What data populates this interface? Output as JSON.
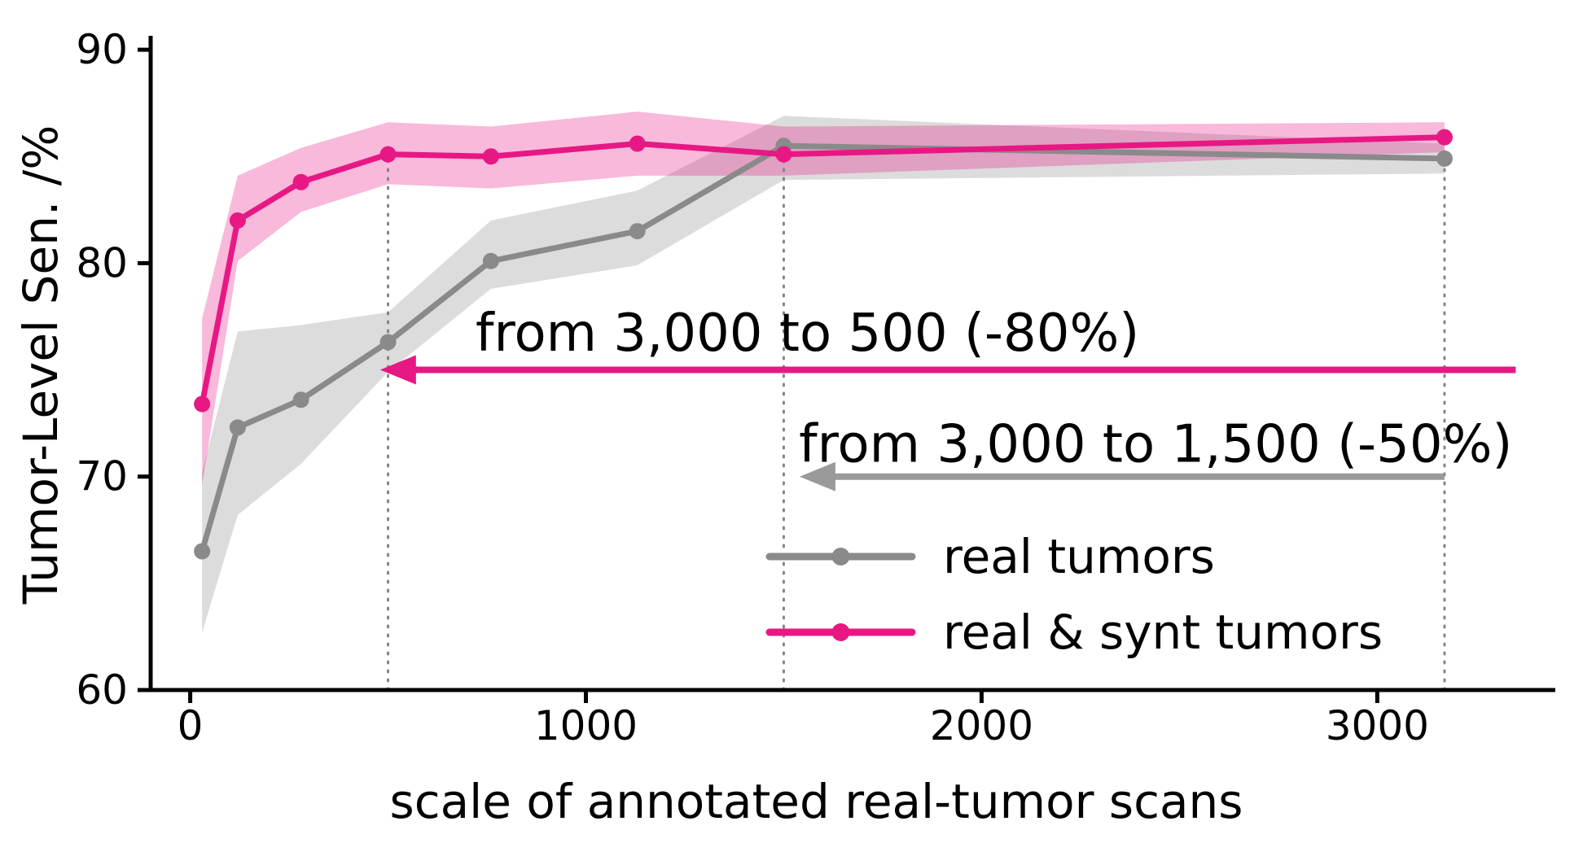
{
  "figure": {
    "background": "#ffffff",
    "text_color": "#000000",
    "spine_color": "#000000",
    "vline_color": "#858585"
  },
  "chart_data": {
    "type": "line",
    "title": "",
    "xlabel": "scale of annotated real-tumor scans",
    "ylabel": "Tumor-Level Sen. /%",
    "xlim": [
      -100,
      3450
    ],
    "ylim": [
      60,
      90.5
    ],
    "xticks": [
      0,
      1000,
      2000,
      3000
    ],
    "yticks": [
      60,
      70,
      80,
      90
    ],
    "grid": false,
    "x": [
      30,
      120,
      280,
      500,
      760,
      1130,
      1500,
      3170
    ],
    "series": [
      {
        "name": "real tumors",
        "color": "#8a8a8a",
        "band_opacity": 0.3,
        "y": [
          66.5,
          72.3,
          73.6,
          76.3,
          80.1,
          81.5,
          85.5,
          84.9
        ],
        "band_low": [
          62.7,
          68.2,
          70.6,
          74.9,
          78.8,
          79.9,
          83.9,
          84.2
        ],
        "band_high": [
          70.2,
          76.8,
          77.1,
          77.7,
          82.0,
          83.4,
          86.9,
          85.6
        ]
      },
      {
        "name": "real & synt tumors",
        "color": "#e71884",
        "band_opacity": 0.3,
        "y": [
          73.4,
          82.0,
          83.8,
          85.1,
          85.0,
          85.6,
          85.1,
          85.9
        ],
        "band_low": [
          69.6,
          80.1,
          82.4,
          83.7,
          83.5,
          84.1,
          84.1,
          85.2
        ],
        "band_high": [
          77.4,
          84.1,
          85.4,
          86.6,
          86.4,
          87.1,
          86.4,
          86.6
        ]
      }
    ],
    "vlines": [
      {
        "x": 500,
        "y_top": 85.1
      },
      {
        "x": 1500,
        "y_top": 85.5
      },
      {
        "x": 3170,
        "y_top": 85.9
      }
    ],
    "annotations": [
      {
        "id": "synt-annotation-reduction",
        "text": "from 3,000 to 500 (-80%)",
        "color": "#e71884",
        "arrow_x_start": 3350,
        "arrow_x_end": 480,
        "arrow_y": 75.0,
        "text_x": 1560,
        "text_y": 76.7
      },
      {
        "id": "real-annotation-reduction",
        "text": "from 3,000 to 1,500 (-50%)",
        "color": "#9a9a9a",
        "arrow_x_start": 3170,
        "arrow_x_end": 1540,
        "arrow_y": 70.0,
        "text_x": 2440,
        "text_y": 71.5
      }
    ],
    "legend": [
      {
        "label": "real tumors",
        "color": "#8a8a8a"
      },
      {
        "label": "real & synt tumors",
        "color": "#e71884"
      }
    ]
  }
}
